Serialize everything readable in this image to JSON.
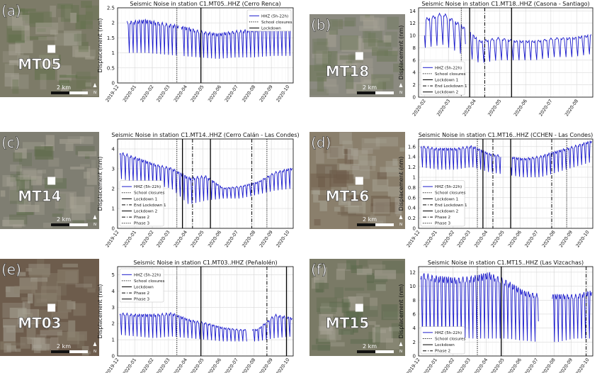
{
  "figure": {
    "shared_xlabel_dates": [
      "2019-12",
      "2020-01",
      "2020-02",
      "2020-03",
      "2020-04",
      "2020-05",
      "2020-06",
      "2020-07",
      "2020-08",
      "2020-09",
      "2020-10"
    ],
    "colors": {
      "series": "#1a1acc",
      "grid": "#cfcfcf",
      "event": "#000000",
      "map_green": "#6f7a5a",
      "map_urban": "#9a9688"
    },
    "panels": [
      {
        "letter": "(a)",
        "station": "MT05",
        "map": {
          "base": "#7d7b68",
          "accent": "#5f6f48",
          "scale": "2 km",
          "north": "N"
        },
        "chart_data": {
          "type": "line",
          "title": "Seismic Noise in station C1.MT05..HHZ (Cerro Renca)",
          "ylabel": "Displacement (nm)",
          "xlim": [
            "2019-12-01",
            "2020-10-10"
          ],
          "ylim": [
            0,
            2.5
          ],
          "yticks": [
            0,
            0.5,
            1.0,
            1.5,
            2.0,
            2.5
          ],
          "xticks": [
            "2019-12",
            "2020-01",
            "2020-02",
            "2020-03",
            "2020-04",
            "2020-05",
            "2020-06",
            "2020-07",
            "2020-08",
            "2020-09",
            "2020-10"
          ],
          "legend": {
            "placement": "top-right",
            "entries": [
              {
                "label": "HHZ (5h-22h)",
                "style": "series"
              },
              {
                "label": "School closures",
                "style": "dotted"
              },
              {
                "label": "Lockdown",
                "style": "solid"
              }
            ]
          },
          "series": {
            "name": "HHZ (5h-22h)",
            "start": "2019-12-18",
            "end": "2020-10-05",
            "high": [
              2.0,
              2.05,
              1.95,
              1.85,
              1.7,
              1.6,
              1.7,
              1.75,
              1.8,
              1.85
            ],
            "low": [
              1.0,
              1.0,
              0.95,
              0.9,
              0.85,
              0.8,
              0.85,
              0.85,
              0.9,
              0.9
            ],
            "gaps": [
              [
                "2020-03-20",
                "2020-03-23"
              ]
            ]
          },
          "events": [
            {
              "date": "2020-03-16",
              "style": "dotted"
            },
            {
              "date": "2020-04-28",
              "style": "solid"
            }
          ]
        }
      },
      {
        "letter": "(b)",
        "station": "MT18",
        "map": {
          "base": "#8b8a80",
          "accent": "#6b7656",
          "scale": "2 km",
          "north": "N"
        },
        "chart_data": {
          "type": "line",
          "title": "Seismic Noise in station C1.MT18..HHZ (Casona - Santiago)",
          "ylabel": "Displacement (nm)",
          "xlim": [
            "2020-01-25",
            "2020-08-20"
          ],
          "ylim": [
            0,
            14.5
          ],
          "yticks": [
            0,
            2,
            4,
            6,
            8,
            10,
            12,
            14
          ],
          "xticks": [
            "2020-02",
            "2020-03",
            "2020-04",
            "2020-05",
            "2020-06",
            "2020-07",
            "2020-08"
          ],
          "legend": {
            "placement": "bottom-left",
            "entries": [
              {
                "label": "HHZ (5h-22h)",
                "style": "series"
              },
              {
                "label": "School closures",
                "style": "dotted"
              },
              {
                "label": "Lockdown 1",
                "style": "solid"
              },
              {
                "label": "End Lockdown 1",
                "style": "dashdot"
              },
              {
                "label": "Lockdown 2",
                "style": "solid"
              }
            ]
          },
          "series": {
            "name": "HHZ (5h-22h)",
            "start": "2020-02-01",
            "end": "2020-08-18",
            "high": [
              12.5,
              13.5,
              11.5,
              9.0,
              9.5,
              9.0,
              9.0,
              9.5,
              9.5,
              10.0
            ],
            "low": [
              8.0,
              8.5,
              7.0,
              5.5,
              6.0,
              6.0,
              6.0,
              6.5,
              6.5,
              7.0
            ],
            "gaps": [
              [
                "2020-03-22",
                "2020-03-25"
              ]
            ]
          },
          "events": [
            {
              "date": "2020-03-16",
              "style": "dotted"
            },
            {
              "date": "2020-03-26",
              "style": "solid"
            },
            {
              "date": "2020-04-13",
              "style": "dashdot"
            },
            {
              "date": "2020-05-15",
              "style": "solid"
            }
          ]
        }
      },
      {
        "letter": "(c)",
        "station": "MT14",
        "map": {
          "base": "#7f7e72",
          "accent": "#5d6b4a",
          "scale": "2 km",
          "north": "N"
        },
        "chart_data": {
          "type": "line",
          "title": "Seismic Noise in station C1.MT14..HHZ (Cerro Calán - Las Condes)",
          "ylabel": "Displacement (nm)",
          "xlim": [
            "2019-12-01",
            "2020-10-10"
          ],
          "ylim": [
            0,
            4.5
          ],
          "yticks": [
            0,
            1,
            2,
            3,
            4
          ],
          "xticks": [
            "2019-12",
            "2020-01",
            "2020-02",
            "2020-03",
            "2020-04",
            "2020-05",
            "2020-06",
            "2020-07",
            "2020-08",
            "2020-09",
            "2020-10"
          ],
          "legend": {
            "placement": "bottom-left",
            "entries": [
              {
                "label": "HHZ (5h-22h)",
                "style": "series"
              },
              {
                "label": "School closures",
                "style": "dotted"
              },
              {
                "label": "Lockdown 1",
                "style": "solid"
              },
              {
                "label": "End Lockdown 1",
                "style": "dashdot"
              },
              {
                "label": "Lockdown 2",
                "style": "solid"
              },
              {
                "label": "Phase 2",
                "style": "dashdot"
              },
              {
                "label": "Phase 3",
                "style": "dotted"
              }
            ]
          },
          "series": {
            "name": "HHZ (5h-22h)",
            "start": "2019-12-05",
            "end": "2020-10-08",
            "high": [
              3.8,
              3.5,
              3.2,
              3.0,
              2.5,
              2.6,
              2.0,
              2.1,
              2.3,
              2.8,
              3.0
            ],
            "low": [
              2.5,
              2.3,
              2.2,
              2.0,
              1.2,
              1.4,
              1.5,
              1.5,
              1.7,
              1.9,
              2.0
            ],
            "gaps": []
          },
          "events": [
            {
              "date": "2020-03-16",
              "style": "dotted"
            },
            {
              "date": "2020-03-26",
              "style": "solid"
            },
            {
              "date": "2020-04-13",
              "style": "dashdot"
            },
            {
              "date": "2020-05-15",
              "style": "solid"
            },
            {
              "date": "2020-07-28",
              "style": "dashdot"
            },
            {
              "date": "2020-08-24",
              "style": "dotted"
            }
          ]
        }
      },
      {
        "letter": "(d)",
        "station": "MT16",
        "map": {
          "base": "#8a7f6c",
          "accent": "#6c5a48",
          "scale": "2 km",
          "north": "N"
        },
        "chart_data": {
          "type": "line",
          "title": "Seismic Noise in station C1.MT16..HHZ (CCHEN - Las Condes)",
          "ylabel": "Displacement (nm)",
          "xlim": [
            "2019-12-01",
            "2020-10-10"
          ],
          "ylim": [
            0,
            1.75
          ],
          "yticks": [
            0,
            0.2,
            0.4,
            0.6,
            0.8,
            1.0,
            1.2,
            1.4,
            1.6
          ],
          "xticks": [
            "2019-12",
            "2020-01",
            "2020-02",
            "2020-03",
            "2020-04",
            "2020-05",
            "2020-06",
            "2020-07",
            "2020-08",
            "2020-09",
            "2020-10"
          ],
          "legend": {
            "placement": "bottom-left",
            "entries": [
              {
                "label": "HHZ (5h-22h)",
                "style": "series"
              },
              {
                "label": "School closures",
                "style": "dotted"
              },
              {
                "label": "Lockdown 1",
                "style": "solid"
              },
              {
                "label": "End Lockdown 1",
                "style": "dashdot"
              },
              {
                "label": "Lockdown 2",
                "style": "solid"
              },
              {
                "label": "Phase 2",
                "style": "dashdot"
              },
              {
                "label": "Phase 3",
                "style": "dotted"
              }
            ]
          },
          "series": {
            "name": "HHZ (5h-22h)",
            "start": "2019-12-05",
            "end": "2020-10-08",
            "high": [
              1.6,
              1.55,
              1.55,
              1.6,
              1.45,
              1.4,
              1.35,
              1.4,
              1.5,
              1.6,
              1.7
            ],
            "low": [
              1.2,
              1.15,
              1.15,
              1.2,
              1.1,
              1.05,
              1.0,
              1.0,
              1.1,
              1.2,
              1.3
            ],
            "gaps": [
              [
                "2020-04-28",
                "2020-05-15"
              ]
            ]
          },
          "events": [
            {
              "date": "2020-03-16",
              "style": "dotted"
            },
            {
              "date": "2020-03-26",
              "style": "solid"
            },
            {
              "date": "2020-04-13",
              "style": "dashdot"
            },
            {
              "date": "2020-05-15",
              "style": "solid"
            },
            {
              "date": "2020-07-28",
              "style": "dashdot"
            },
            {
              "date": "2020-08-24",
              "style": "dotted"
            }
          ]
        }
      },
      {
        "letter": "(e)",
        "station": "MT03",
        "map": {
          "base": "#6d5c4c",
          "accent": "#8c8270",
          "scale": "2 km",
          "north": "N"
        },
        "chart_data": {
          "type": "line",
          "title": "Seismic Noise in station C1.MT03..HHZ (Peñalolén)",
          "ylabel": "Displacement (nm)",
          "xlim": [
            "2019-12-01",
            "2020-10-10"
          ],
          "ylim": [
            0,
            5.5
          ],
          "yticks": [
            0,
            1,
            2,
            3,
            4,
            5
          ],
          "xticks": [
            "2019-12",
            "2020-01",
            "2020-02",
            "2020-03",
            "2020-04",
            "2020-05",
            "2020-06",
            "2020-07",
            "2020-08",
            "2020-09",
            "2020-10"
          ],
          "legend": {
            "placement": "top-left",
            "entries": [
              {
                "label": "HHZ (5h-22h)",
                "style": "series"
              },
              {
                "label": "School closures",
                "style": "dotted"
              },
              {
                "label": "Lockdown",
                "style": "solid"
              },
              {
                "label": "Phase 2",
                "style": "dashdot"
              },
              {
                "label": "Phase 3",
                "style": "solid"
              }
            ]
          },
          "series": {
            "name": "HHZ (5h-22h)",
            "start": "2019-12-05",
            "end": "2020-10-08",
            "high": [
              2.6,
              2.5,
              2.5,
              2.6,
              2.2,
              2.0,
              1.7,
              1.6,
              1.6,
              2.5,
              2.3
            ],
            "low": [
              1.3,
              1.2,
              1.1,
              1.2,
              1.1,
              1.0,
              0.9,
              0.9,
              0.9,
              1.1,
              1.2
            ],
            "gaps": [
              [
                "2020-07-20",
                "2020-07-28"
              ]
            ]
          },
          "events": [
            {
              "date": "2020-03-16",
              "style": "dotted"
            },
            {
              "date": "2020-04-28",
              "style": "solid"
            },
            {
              "date": "2020-08-24",
              "style": "dashdot"
            },
            {
              "date": "2020-09-28",
              "style": "solid"
            }
          ]
        }
      },
      {
        "letter": "(f)",
        "station": "MT15",
        "map": {
          "base": "#7a7a66",
          "accent": "#58684a",
          "scale": "2 km",
          "north": "N"
        },
        "chart_data": {
          "type": "line",
          "title": "Seismic Noise in station C1.MT15..HHZ (Las Vizcachas)",
          "ylabel": "Displacement (nm)",
          "xlim": [
            "2019-12-01",
            "2020-10-10"
          ],
          "ylim": [
            0,
            12.8
          ],
          "yticks": [
            0,
            2,
            4,
            6,
            8,
            10,
            12
          ],
          "xticks": [
            "2019-12",
            "2020-01",
            "2020-02",
            "2020-03",
            "2020-04",
            "2020-05",
            "2020-06",
            "2020-07",
            "2020-08",
            "2020-09",
            "2020-10"
          ],
          "legend": {
            "placement": "bottom-left",
            "entries": [
              {
                "label": "HHZ (5h-22h)",
                "style": "series"
              },
              {
                "label": "School closures",
                "style": "dotted"
              },
              {
                "label": "Lockdown",
                "style": "solid"
              },
              {
                "label": "Phase 2",
                "style": "dashdot"
              }
            ]
          },
          "series": {
            "name": "HHZ (5h-22h)",
            "start": "2019-12-05",
            "end": "2020-10-08",
            "high": [
              11.5,
              11.0,
              10.8,
              11.0,
              11.5,
              10.5,
              9.0,
              8.5,
              8.5,
              8.5,
              9.0
            ],
            "low": [
              2.5,
              2.5,
              2.8,
              2.5,
              2.5,
              2.5,
              2.2,
              2.0,
              2.0,
              2.5,
              2.5
            ],
            "gaps": [
              [
                "2020-07-05",
                "2020-07-28"
              ]
            ]
          },
          "events": [
            {
              "date": "2020-03-16",
              "style": "dotted"
            },
            {
              "date": "2020-04-28",
              "style": "solid"
            },
            {
              "date": "2020-09-28",
              "style": "dashdot"
            }
          ]
        }
      }
    ]
  }
}
